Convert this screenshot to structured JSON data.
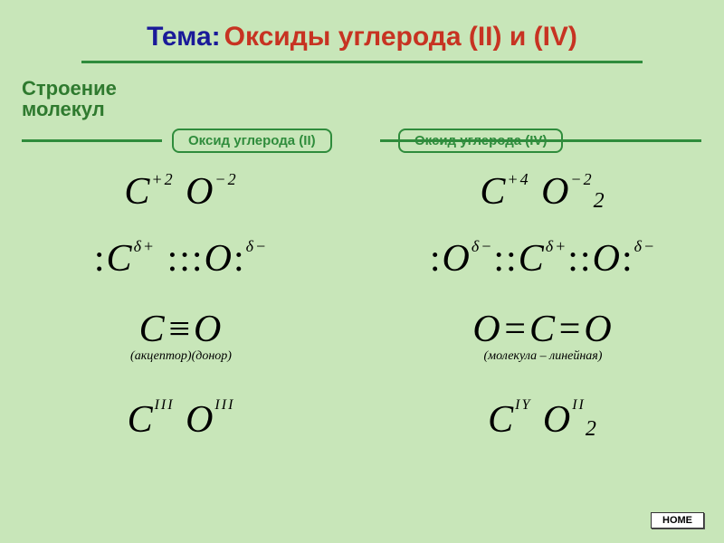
{
  "colors": {
    "background": "#c8e6b9",
    "title_accent": "#c73322",
    "title_prefix": "#1a1a99",
    "subtitle": "#2f7a2f",
    "chip_border": "#2f8c3c",
    "rule": "#2f8c3c",
    "formula_text": "#000000"
  },
  "title": {
    "prefix": "Тема:",
    "main": "Оксиды углерода (II) и (IV)"
  },
  "subtitle_line1": "Строение",
  "subtitle_line2": "молекул",
  "chips": {
    "left": "Оксид углерода (II)",
    "right": "Оксид углерода (IV)"
  },
  "left": {
    "row1": {
      "C_sup": "+2",
      "O_sup": "−2"
    },
    "row2": {
      "C_sup": "δ+",
      "O_sup": "δ−"
    },
    "row3": {
      "note": "(акцептор)(донор)"
    },
    "row4": {
      "C_sup": "III",
      "O_sup": "III"
    }
  },
  "right": {
    "row1": {
      "C_sup": "+4",
      "O_sup": "−2",
      "O_sub": "2"
    },
    "row2": {
      "O1_sup": "δ−",
      "C_sup": "δ+",
      "O2_sup": "δ−"
    },
    "row3": {
      "note": "(молекула – линейная)"
    },
    "row4": {
      "C_sup": "IY",
      "O_sup": "II",
      "O_sub": "2"
    }
  },
  "home_label": "HOME"
}
